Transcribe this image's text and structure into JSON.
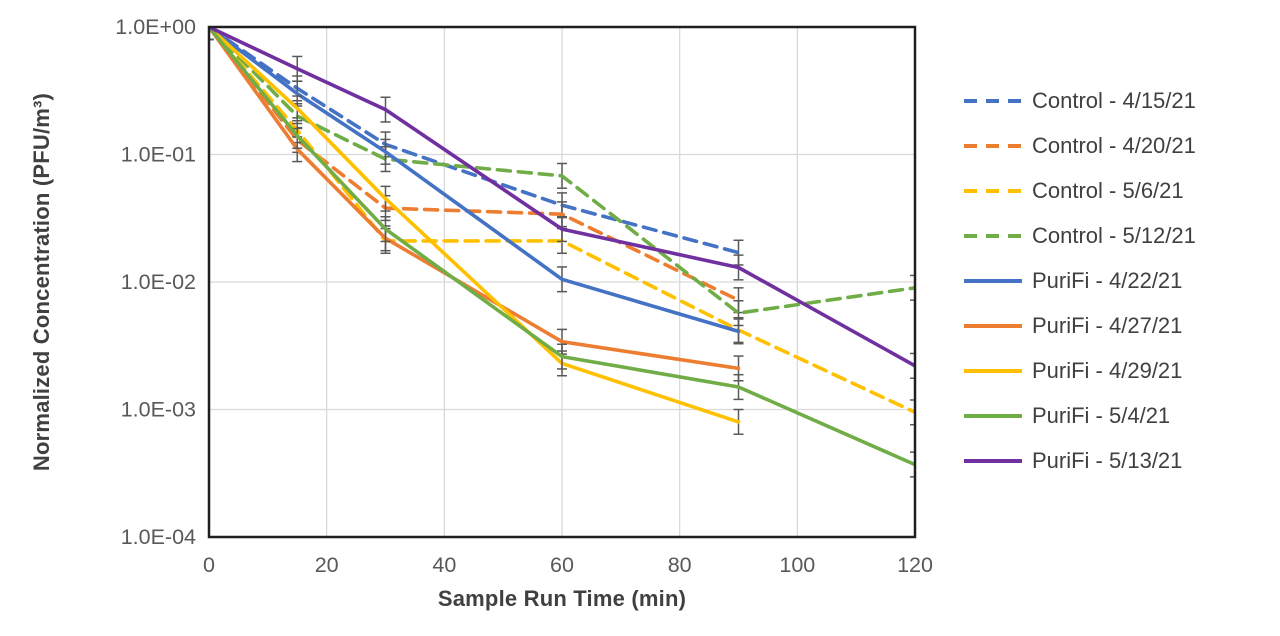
{
  "canvas": {
    "background": "#FFFFFF"
  },
  "chart_data": {
    "type": "line",
    "title": "",
    "xlabel": "Sample Run Time (min)",
    "ylabel": "Normalized Concentration (PFU/m³)",
    "x_ticks": [
      0,
      20,
      40,
      60,
      80,
      100,
      120
    ],
    "y_tick_labels": [
      "1.0E+00",
      "1.0E-01",
      "1.0E-02",
      "1.0E-03",
      "1.0E-04"
    ],
    "y_tick_values": [
      1,
      0.1,
      0.01,
      0.001,
      0.0001
    ],
    "xlim": [
      0,
      120
    ],
    "ylim": [
      0.0001,
      1
    ],
    "y_scale": "log",
    "grid": true,
    "legend_position": "right-outside",
    "error_bar_factor": 1.25,
    "axis_text_color": "#595959",
    "grid_color": "#D9D9D9",
    "border_color": "#1F1F1F",
    "series": [
      {
        "name": "Control - 4/15/21",
        "color": "#4472C4",
        "dash": true,
        "points": [
          [
            0,
            1.0
          ],
          [
            15,
            0.33
          ],
          [
            30,
            0.12
          ],
          [
            60,
            0.04
          ],
          [
            90,
            0.017
          ]
        ]
      },
      {
        "name": "Control - 4/20/21",
        "color": "#ED7D31",
        "dash": true,
        "points": [
          [
            0,
            1.0
          ],
          [
            15,
            0.13
          ],
          [
            30,
            0.038
          ],
          [
            60,
            0.034
          ],
          [
            90,
            0.0072
          ]
        ]
      },
      {
        "name": "Control - 5/6/21",
        "color": "#FFC000",
        "dash": true,
        "points": [
          [
            0,
            1.0
          ],
          [
            15,
            0.155
          ],
          [
            30,
            0.021
          ],
          [
            60,
            0.021
          ],
          [
            90,
            0.0042
          ],
          [
            120,
            0.00095
          ]
        ]
      },
      {
        "name": "Control - 5/12/21",
        "color": "#70AD47",
        "dash": true,
        "points": [
          [
            0,
            1.0
          ],
          [
            15,
            0.2
          ],
          [
            30,
            0.092
          ],
          [
            60,
            0.068
          ],
          [
            90,
            0.0057
          ],
          [
            120,
            0.009
          ]
        ]
      },
      {
        "name": "PuriFi - 4/22/21",
        "color": "#4472C4",
        "dash": false,
        "points": [
          [
            0,
            1.0
          ],
          [
            15,
            0.3
          ],
          [
            30,
            0.105
          ],
          [
            60,
            0.0105
          ],
          [
            90,
            0.0041
          ]
        ]
      },
      {
        "name": "PuriFi - 4/27/21",
        "color": "#ED7D31",
        "dash": false,
        "points": [
          [
            0,
            1.0
          ],
          [
            15,
            0.11
          ],
          [
            30,
            0.022
          ],
          [
            60,
            0.0034
          ],
          [
            90,
            0.0021
          ]
        ]
      },
      {
        "name": "PuriFi - 4/29/21",
        "color": "#FFC000",
        "dash": false,
        "points": [
          [
            0,
            1.0
          ],
          [
            15,
            0.23
          ],
          [
            30,
            0.045
          ],
          [
            60,
            0.0023
          ],
          [
            90,
            0.0008
          ]
        ]
      },
      {
        "name": "PuriFi - 5/4/21",
        "color": "#70AD47",
        "dash": false,
        "points": [
          [
            0,
            1.0
          ],
          [
            15,
            0.14
          ],
          [
            30,
            0.026
          ],
          [
            60,
            0.0026
          ],
          [
            90,
            0.0015
          ],
          [
            120,
            0.00037
          ]
        ]
      },
      {
        "name": "PuriFi - 5/13/21",
        "color": "#7030A0",
        "dash": false,
        "points": [
          [
            0,
            1.0
          ],
          [
            15,
            0.47
          ],
          [
            30,
            0.225
          ],
          [
            60,
            0.026
          ],
          [
            90,
            0.013
          ],
          [
            120,
            0.0022
          ]
        ]
      }
    ]
  }
}
